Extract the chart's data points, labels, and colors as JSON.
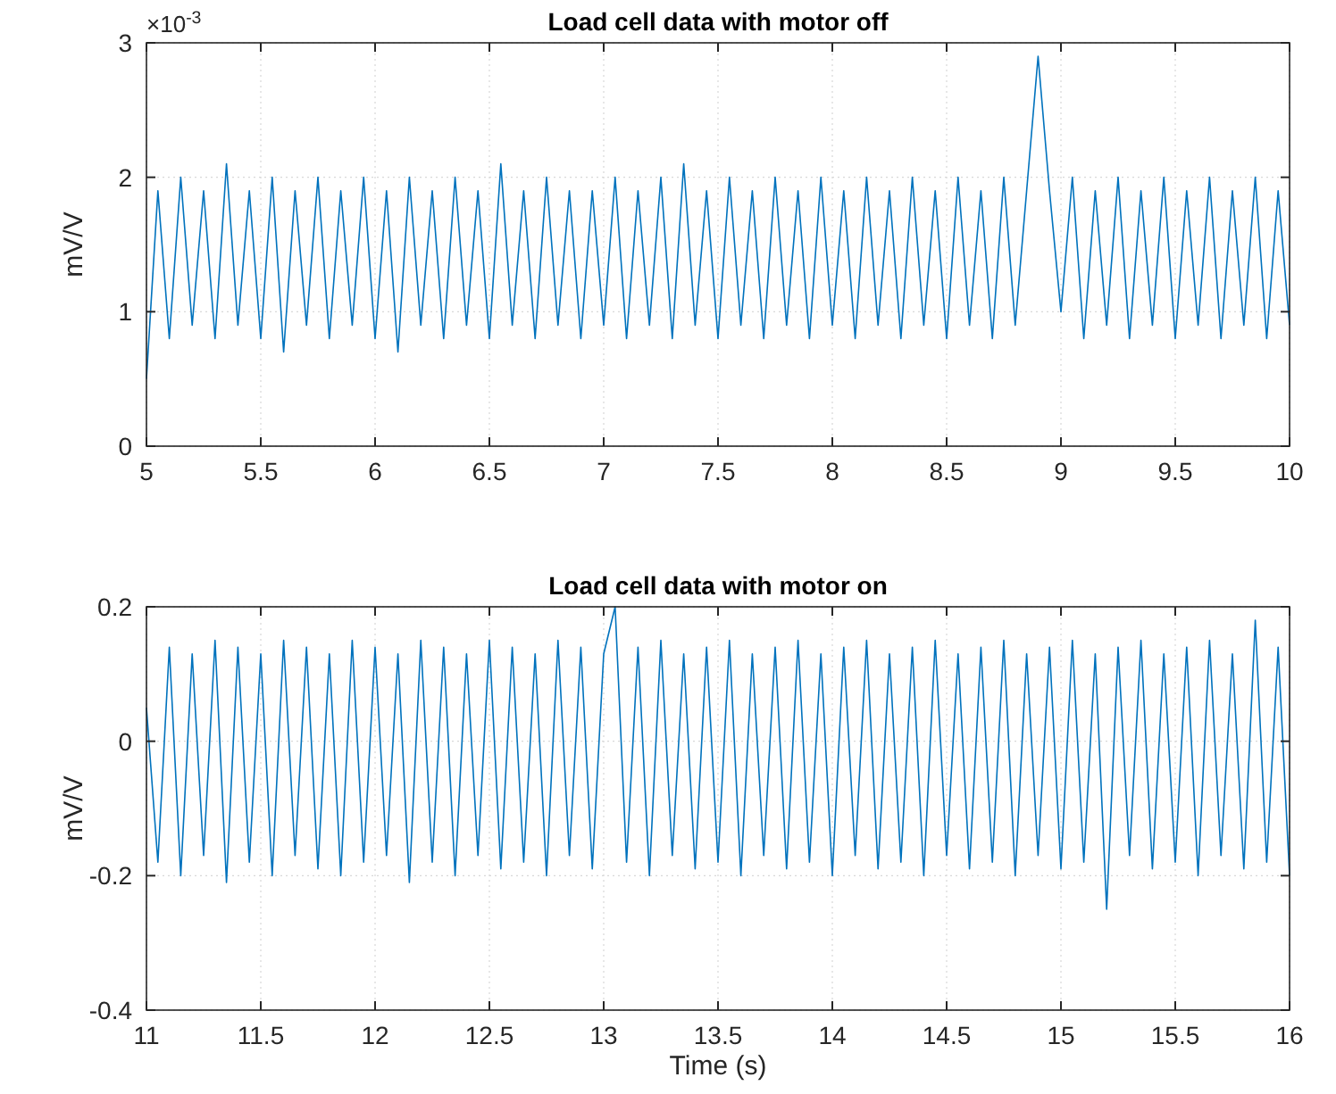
{
  "chart_data": [
    {
      "type": "line",
      "title": "Load cell data with motor off",
      "ylabel": "mV/V",
      "xlim": [
        5,
        10
      ],
      "xticks": [
        5,
        5.5,
        6,
        6.5,
        7,
        7.5,
        8,
        8.5,
        9,
        9.5,
        10
      ],
      "ylim": [
        0,
        3
      ],
      "yticks": [
        0,
        1,
        2,
        3
      ],
      "annotations": [
        "×10$^{-3}$"
      ],
      "grid": true,
      "series": [
        {
          "color": "#0072bd",
          "x": [
            5,
            5.05,
            5.1,
            5.15,
            5.2,
            5.25,
            5.3,
            5.35,
            5.4,
            5.45,
            5.5,
            5.55,
            5.6,
            5.65,
            5.7,
            5.75,
            5.8,
            5.85,
            5.9,
            5.95,
            6,
            6.05,
            6.1,
            6.15,
            6.2,
            6.25,
            6.3,
            6.35,
            6.4,
            6.45,
            6.5,
            6.55,
            6.6,
            6.65,
            6.7,
            6.75,
            6.8,
            6.85,
            6.9,
            6.95,
            7,
            7.05,
            7.1,
            7.15,
            7.2,
            7.25,
            7.3,
            7.35,
            7.4,
            7.45,
            7.5,
            7.55,
            7.6,
            7.65,
            7.7,
            7.75,
            7.8,
            7.85,
            7.9,
            7.95,
            8,
            8.05,
            8.1,
            8.15,
            8.2,
            8.25,
            8.3,
            8.35,
            8.4,
            8.45,
            8.5,
            8.55,
            8.6,
            8.65,
            8.7,
            8.75,
            8.8,
            8.85,
            8.9,
            8.95,
            9,
            9.05,
            9.1,
            9.15,
            9.2,
            9.25,
            9.3,
            9.35,
            9.4,
            9.45,
            9.5,
            9.55,
            9.6,
            9.65,
            9.7,
            9.75,
            9.8,
            9.85,
            9.9,
            9.95,
            10
          ],
          "values": [
            0.5,
            1.9,
            0.8,
            2,
            0.9,
            1.9,
            0.8,
            2.1,
            0.9,
            1.9,
            0.8,
            2,
            0.7,
            1.9,
            0.9,
            2,
            0.8,
            1.9,
            0.9,
            2,
            0.8,
            1.9,
            0.7,
            2,
            0.9,
            1.9,
            0.8,
            2,
            0.9,
            1.9,
            0.8,
            2.1,
            0.9,
            1.9,
            0.8,
            2,
            0.9,
            1.9,
            0.8,
            1.9,
            0.9,
            2,
            0.8,
            1.9,
            0.9,
            2,
            0.8,
            2.1,
            0.9,
            1.9,
            0.8,
            2,
            0.9,
            1.9,
            0.8,
            2,
            0.9,
            1.9,
            0.8,
            2,
            0.9,
            1.9,
            0.8,
            2,
            0.9,
            1.9,
            0.8,
            2,
            0.9,
            1.9,
            0.8,
            2,
            0.9,
            1.9,
            0.8,
            2,
            0.9,
            1.9,
            2.9,
            1.9,
            1,
            2,
            0.8,
            1.9,
            0.9,
            2,
            0.8,
            1.9,
            0.9,
            2,
            0.8,
            1.9,
            0.9,
            2,
            0.8,
            1.9,
            0.9,
            2,
            0.8,
            1.9,
            0.9
          ]
        }
      ]
    },
    {
      "type": "line",
      "title": "Load cell data with motor on",
      "ylabel": "mV/V",
      "xlabel": "Time (s)",
      "xlim": [
        11,
        16
      ],
      "xticks": [
        11,
        11.5,
        12,
        12.5,
        13,
        13.5,
        14,
        14.5,
        15,
        15.5,
        16
      ],
      "ylim": [
        -0.4,
        0.2
      ],
      "yticks": [
        -0.4,
        -0.2,
        0,
        0.2
      ],
      "grid": true,
      "series": [
        {
          "color": "#0072bd",
          "x": [
            11,
            11.05,
            11.1,
            11.15,
            11.2,
            11.25,
            11.3,
            11.35,
            11.4,
            11.45,
            11.5,
            11.55,
            11.6,
            11.65,
            11.7,
            11.75,
            11.8,
            11.85,
            11.9,
            11.95,
            12,
            12.05,
            12.1,
            12.15,
            12.2,
            12.25,
            12.3,
            12.35,
            12.4,
            12.45,
            12.5,
            12.55,
            12.6,
            12.65,
            12.7,
            12.75,
            12.8,
            12.85,
            12.9,
            12.95,
            13,
            13.05,
            13.1,
            13.15,
            13.2,
            13.25,
            13.3,
            13.35,
            13.4,
            13.45,
            13.5,
            13.55,
            13.6,
            13.65,
            13.7,
            13.75,
            13.8,
            13.85,
            13.9,
            13.95,
            14,
            14.05,
            14.1,
            14.15,
            14.2,
            14.25,
            14.3,
            14.35,
            14.4,
            14.45,
            14.5,
            14.55,
            14.6,
            14.65,
            14.7,
            14.75,
            14.8,
            14.85,
            14.9,
            14.95,
            15,
            15.05,
            15.1,
            15.15,
            15.2,
            15.25,
            15.3,
            15.35,
            15.4,
            15.45,
            15.5,
            15.55,
            15.6,
            15.65,
            15.7,
            15.75,
            15.8,
            15.85,
            15.9,
            15.95,
            16
          ],
          "values": [
            0.05,
            -0.18,
            0.14,
            -0.2,
            0.13,
            -0.17,
            0.15,
            -0.21,
            0.14,
            -0.18,
            0.13,
            -0.2,
            0.15,
            -0.17,
            0.14,
            -0.19,
            0.13,
            -0.2,
            0.15,
            -0.18,
            0.14,
            -0.17,
            0.13,
            -0.21,
            0.15,
            -0.18,
            0.14,
            -0.2,
            0.13,
            -0.17,
            0.15,
            -0.19,
            0.14,
            -0.18,
            0.13,
            -0.2,
            0.15,
            -0.17,
            0.14,
            -0.19,
            0.13,
            0.2,
            -0.18,
            0.14,
            -0.2,
            0.15,
            -0.17,
            0.13,
            -0.19,
            0.14,
            -0.18,
            0.15,
            -0.2,
            0.13,
            -0.17,
            0.14,
            -0.19,
            0.15,
            -0.18,
            0.13,
            -0.2,
            0.14,
            -0.17,
            0.15,
            -0.19,
            0.13,
            -0.18,
            0.14,
            -0.2,
            0.15,
            -0.17,
            0.13,
            -0.19,
            0.14,
            -0.18,
            0.15,
            -0.2,
            0.13,
            -0.17,
            0.14,
            -0.19,
            0.15,
            -0.18,
            0.13,
            -0.25,
            0.14,
            -0.17,
            0.15,
            -0.19,
            0.13,
            -0.18,
            0.14,
            -0.2,
            0.15,
            -0.17,
            0.13,
            -0.19,
            0.18,
            -0.18,
            0.14,
            -0.2
          ]
        }
      ]
    }
  ]
}
